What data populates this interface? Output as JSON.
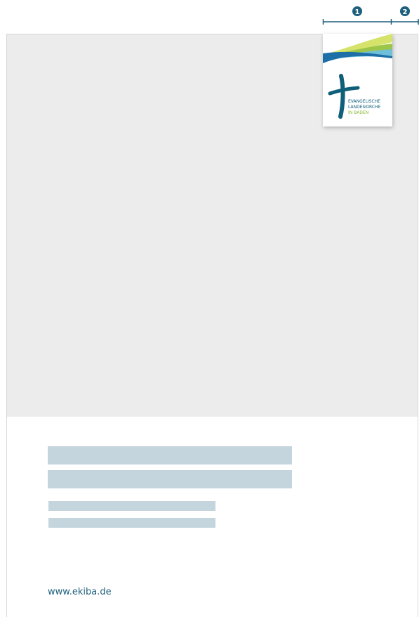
{
  "markers": [
    {
      "label": "1"
    },
    {
      "label": "2"
    }
  ],
  "logo": {
    "lines": [
      "EVANGELISCHE",
      "LANDESKIRCHE",
      "IN BADEN"
    ]
  },
  "footer": {
    "url": "www.ekiba.de"
  }
}
